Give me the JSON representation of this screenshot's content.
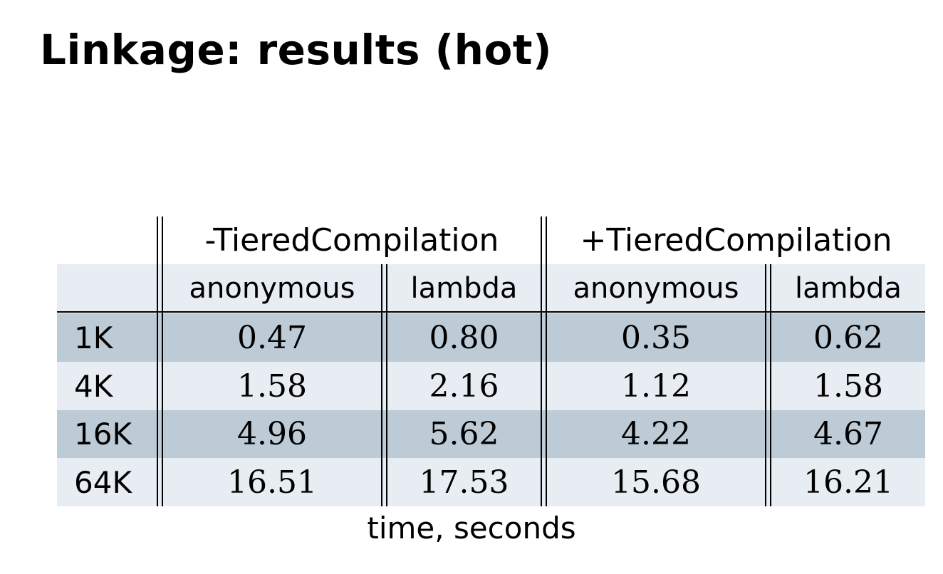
{
  "slide": {
    "title": "Linkage: results (hot)"
  },
  "table": {
    "group_headers": [
      "-TieredCompilation",
      "+TieredCompilation"
    ],
    "sub_headers": [
      "anonymous",
      "lambda",
      "anonymous",
      "lambda"
    ],
    "rows": [
      {
        "label": "1K",
        "values": [
          "0.47",
          "0.80",
          "0.35",
          "0.62"
        ]
      },
      {
        "label": "4K",
        "values": [
          "1.58",
          "2.16",
          "1.12",
          "1.58"
        ]
      },
      {
        "label": "16K",
        "values": [
          "4.96",
          "5.62",
          "4.22",
          "4.67"
        ]
      },
      {
        "label": "64K",
        "values": [
          "16.51",
          "17.53",
          "15.68",
          "16.21"
        ]
      }
    ],
    "caption": "time, seconds",
    "colors": {
      "light_row": "#e8ecf3",
      "dark_row": "#bccbd6",
      "rule": "#000000"
    }
  }
}
